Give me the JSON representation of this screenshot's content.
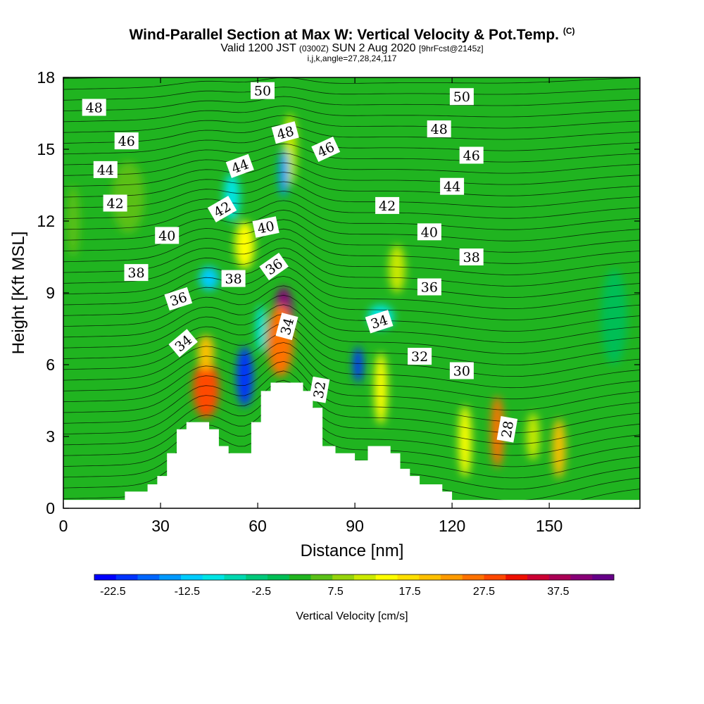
{
  "header": {
    "title": "Wind-Parallel Section at Max W: Vertical Velocity & Pot.Temp.",
    "title_tag": "(C)",
    "valid_prefix": "Valid 1200 JST",
    "valid_utc": "(0300Z)",
    "valid_date": "SUN 2 Aug 2020",
    "forecast": "[9hrFcst@2145z]",
    "indices": "i,j,k,angle=27,28,24,117"
  },
  "chart_data": {
    "type": "heatmap",
    "xlabel": "Distance [nm]",
    "ylabel": "Height [Kft MSL]",
    "xlim": [
      0,
      178
    ],
    "ylim": [
      0,
      18
    ],
    "x_ticks": [
      "0",
      "30",
      "60",
      "90",
      "120",
      "150"
    ],
    "y_ticks": [
      "0",
      "3",
      "6",
      "9",
      "12",
      "15",
      "18"
    ],
    "colorbar": {
      "label": "Vertical Velocity [cm/s]",
      "tick_labels": [
        "-22.5",
        "-12.5",
        "-2.5",
        "7.5",
        "17.5",
        "27.5",
        "37.5"
      ],
      "range": [
        -25,
        45
      ],
      "colors": [
        "#0000ff",
        "#0033ff",
        "#0066ff",
        "#0099ff",
        "#00ccff",
        "#00e5e5",
        "#00d8b0",
        "#00c87a",
        "#00be55",
        "#20b420",
        "#5ac018",
        "#96d40c",
        "#ccea00",
        "#ffff00",
        "#ffe000",
        "#ffc000",
        "#ff9b00",
        "#ff7200",
        "#ff4800",
        "#ee1000",
        "#cc0033",
        "#aa0055",
        "#880077",
        "#660088"
      ]
    },
    "terrain": [
      [
        0,
        0.35
      ],
      [
        19,
        0.35
      ],
      [
        19,
        0.7
      ],
      [
        26,
        0.7
      ],
      [
        26,
        1.0
      ],
      [
        29,
        1.0
      ],
      [
        29,
        1.35
      ],
      [
        32,
        1.35
      ],
      [
        32,
        2.3
      ],
      [
        35,
        2.3
      ],
      [
        35,
        3.3
      ],
      [
        38,
        3.3
      ],
      [
        38,
        3.6
      ],
      [
        45,
        3.6
      ],
      [
        45,
        3.3
      ],
      [
        48,
        3.3
      ],
      [
        48,
        2.6
      ],
      [
        51,
        2.6
      ],
      [
        51,
        2.3
      ],
      [
        58,
        2.3
      ],
      [
        58,
        3.6
      ],
      [
        61,
        3.6
      ],
      [
        61,
        4.9
      ],
      [
        64,
        4.9
      ],
      [
        64,
        5.25
      ],
      [
        74,
        5.25
      ],
      [
        74,
        4.9
      ],
      [
        77,
        4.9
      ],
      [
        77,
        4.2
      ],
      [
        80,
        4.2
      ],
      [
        80,
        2.6
      ],
      [
        84,
        2.6
      ],
      [
        84,
        2.3
      ],
      [
        90,
        2.3
      ],
      [
        90,
        2.0
      ],
      [
        94,
        2.0
      ],
      [
        94,
        2.6
      ],
      [
        101,
        2.6
      ],
      [
        101,
        2.3
      ],
      [
        104,
        2.3
      ],
      [
        104,
        1.65
      ],
      [
        107,
        1.65
      ],
      [
        107,
        1.35
      ],
      [
        110,
        1.35
      ],
      [
        110,
        1.0
      ],
      [
        117,
        1.0
      ],
      [
        117,
        0.7
      ],
      [
        120,
        0.7
      ],
      [
        120,
        0.35
      ],
      [
        178,
        0.35
      ]
    ],
    "vertical_velocity_cells": [
      {
        "x": 44,
        "y": 5.0,
        "w": 8,
        "h": 2.5,
        "value": 30
      },
      {
        "x": 44,
        "y": 6.5,
        "w": 5,
        "h": 1.5,
        "value": 20
      },
      {
        "x": 56,
        "y": 5.5,
        "w": 5,
        "h": 2.5,
        "value": -20
      },
      {
        "x": 45,
        "y": 9.6,
        "w": 6,
        "h": 1.0,
        "value": -12
      },
      {
        "x": 68,
        "y": 8.0,
        "w": 6,
        "h": 2.5,
        "value": 40
      },
      {
        "x": 67,
        "y": 7.0,
        "w": 8,
        "h": 3.0,
        "value": 25
      },
      {
        "x": 61,
        "y": 7.5,
        "w": 3,
        "h": 2.0,
        "value": -10
      },
      {
        "x": 56,
        "y": 11.0,
        "w": 6,
        "h": 2.0,
        "value": 15
      },
      {
        "x": 52,
        "y": 13.0,
        "w": 5,
        "h": 2.0,
        "value": -10
      },
      {
        "x": 70,
        "y": 15.0,
        "w": 4,
        "h": 3.0,
        "value": 10
      },
      {
        "x": 68,
        "y": 14.0,
        "w": 3,
        "h": 2.0,
        "value": -15
      },
      {
        "x": 91,
        "y": 6.0,
        "w": 3,
        "h": 1.5,
        "value": -20
      },
      {
        "x": 98,
        "y": 5.0,
        "w": 4,
        "h": 3.0,
        "value": 15
      },
      {
        "x": 98,
        "y": 8.0,
        "w": 8,
        "h": 1.0,
        "value": -10
      },
      {
        "x": 103,
        "y": 10.0,
        "w": 5,
        "h": 2.0,
        "value": 10
      },
      {
        "x": 124,
        "y": 2.8,
        "w": 4,
        "h": 3.0,
        "value": 15
      },
      {
        "x": 134,
        "y": 3.2,
        "w": 4,
        "h": 3.0,
        "value": 25
      },
      {
        "x": 145,
        "y": 3.0,
        "w": 4,
        "h": 2.0,
        "value": 10
      },
      {
        "x": 153,
        "y": 2.5,
        "w": 4,
        "h": 2.5,
        "value": 20
      },
      {
        "x": 20,
        "y": 13.0,
        "w": 10,
        "h": 3.0,
        "value": 5
      },
      {
        "x": 3,
        "y": 12.0,
        "w": 4,
        "h": 3.0,
        "value": 5
      },
      {
        "x": 170,
        "y": 8.0,
        "w": 8,
        "h": 4.0,
        "value": 0
      }
    ],
    "potential_temperature_labels": [
      {
        "text": "48",
        "x": 9.5,
        "y": 16.75,
        "angle": 0
      },
      {
        "text": "46",
        "x": 19.5,
        "y": 15.35,
        "angle": 0
      },
      {
        "text": "44",
        "x": 13,
        "y": 14.15,
        "angle": 0
      },
      {
        "text": "42",
        "x": 16,
        "y": 12.75,
        "angle": 0
      },
      {
        "text": "40",
        "x": 32,
        "y": 11.4,
        "angle": 0
      },
      {
        "text": "38",
        "x": 22.5,
        "y": 9.85,
        "angle": 0
      },
      {
        "text": "36",
        "x": 35.5,
        "y": 8.75,
        "angle": -18
      },
      {
        "text": "34",
        "x": 37,
        "y": 6.9,
        "angle": -40
      },
      {
        "text": "38",
        "x": 52.5,
        "y": 9.6,
        "angle": 0
      },
      {
        "text": "42",
        "x": 49,
        "y": 12.5,
        "angle": -30
      },
      {
        "text": "44",
        "x": 54.5,
        "y": 14.3,
        "angle": -20
      },
      {
        "text": "40",
        "x": 62.5,
        "y": 11.75,
        "angle": -12
      },
      {
        "text": "36",
        "x": 65,
        "y": 10.1,
        "angle": -35
      },
      {
        "text": "34",
        "x": 69,
        "y": 7.6,
        "angle": -75
      },
      {
        "text": "50",
        "x": 61.5,
        "y": 17.45,
        "angle": 0
      },
      {
        "text": "48",
        "x": 68.5,
        "y": 15.7,
        "angle": -15
      },
      {
        "text": "46",
        "x": 81,
        "y": 15.0,
        "angle": -25
      },
      {
        "text": "32",
        "x": 79,
        "y": 4.95,
        "angle": -80
      },
      {
        "text": "34",
        "x": 97.5,
        "y": 7.8,
        "angle": -18
      },
      {
        "text": "42",
        "x": 100,
        "y": 12.65,
        "angle": 0
      },
      {
        "text": "40",
        "x": 113,
        "y": 11.55,
        "angle": 0
      },
      {
        "text": "36",
        "x": 113,
        "y": 9.25,
        "angle": 0
      },
      {
        "text": "32",
        "x": 110,
        "y": 6.35,
        "angle": 0
      },
      {
        "text": "30",
        "x": 123,
        "y": 5.75,
        "angle": 0
      },
      {
        "text": "28",
        "x": 137,
        "y": 3.3,
        "angle": -80
      },
      {
        "text": "38",
        "x": 126,
        "y": 10.5,
        "angle": 0
      },
      {
        "text": "44",
        "x": 120,
        "y": 13.45,
        "angle": 0
      },
      {
        "text": "46",
        "x": 126,
        "y": 14.75,
        "angle": 0
      },
      {
        "text": "48",
        "x": 116,
        "y": 15.85,
        "angle": 0
      },
      {
        "text": "50",
        "x": 123,
        "y": 17.2,
        "angle": 0
      }
    ]
  }
}
